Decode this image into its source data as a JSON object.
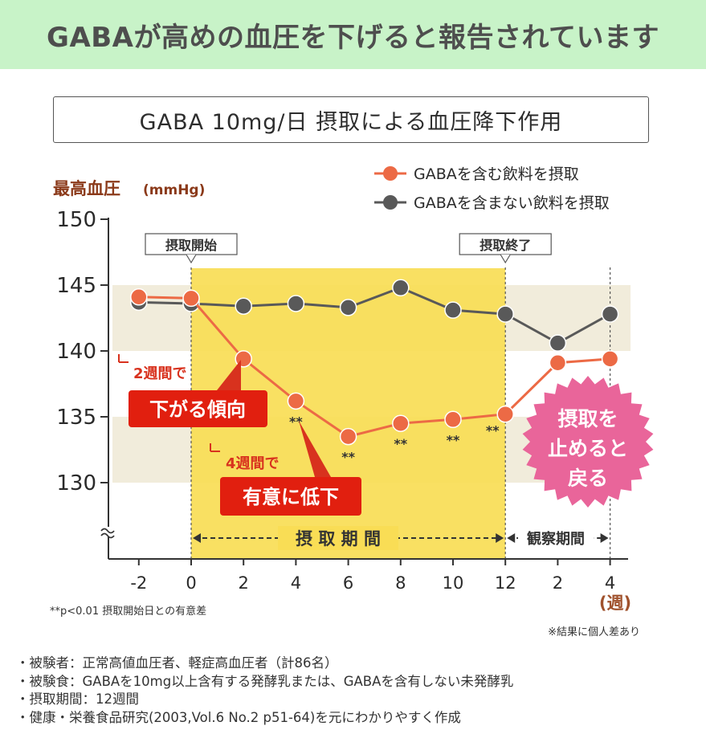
{
  "banner": {
    "headline": "GABAが高めの血圧を下げると報告されています"
  },
  "chart_data": {
    "type": "line",
    "title": "GABA 10mg/日 摂取による血圧降下作用",
    "ylabel": "最高血圧",
    "ylabel_unit": "(mmHg)",
    "xlabel": "(週)",
    "ylim": [
      128,
      150
    ],
    "yticks": [
      150,
      145,
      140,
      135,
      130
    ],
    "x_positions": [
      -2,
      0,
      2,
      4,
      6,
      8,
      10,
      12,
      14,
      16
    ],
    "x_tick_labels": [
      "-2",
      "0",
      "2",
      "4",
      "6",
      "8",
      "10",
      "12",
      "2",
      "4"
    ],
    "series": [
      {
        "name": "GABAを含む飲料を摂取",
        "color": "#ec6a45",
        "x": [
          -2,
          0,
          2,
          4,
          6,
          8,
          10,
          12,
          14,
          16
        ],
        "values": [
          144.1,
          144.0,
          139.4,
          136.2,
          133.5,
          134.5,
          134.8,
          135.2,
          139.1,
          139.4
        ],
        "significance": [
          "",
          "",
          "",
          "**",
          "**",
          "**",
          "**",
          "**",
          "",
          ""
        ]
      },
      {
        "name": "GABAを含まない飲料を摂取",
        "color": "#595959",
        "x": [
          -2,
          0,
          2,
          4,
          6,
          8,
          10,
          12,
          14,
          16
        ],
        "values": [
          143.7,
          143.6,
          143.4,
          143.6,
          143.3,
          144.8,
          143.1,
          142.8,
          140.6,
          142.8
        ]
      }
    ],
    "markers": {
      "start": "摂取開始",
      "end": "摂取終了"
    },
    "periods": {
      "intake": "摂取期間",
      "observation": "観察期間"
    },
    "annotations": {
      "two_weeks_small": "2週間で",
      "two_weeks_big": "下がる傾向",
      "four_weeks_small": "4週間で",
      "four_weeks_big": "有意に低下",
      "stop_effect": [
        "摂取を",
        "止めると",
        "戻る"
      ]
    },
    "significance_note": "**p<0.01 摂取開始日との有意差",
    "individual_note": "※結果に個人差あり",
    "grid": false,
    "legend": "top-right"
  },
  "footnotes": [
    "・被験者：正常高値血圧者、軽症高血圧者（計86名）",
    "・被験食：GABAを10mg以上含有する発酵乳または、GABAを含有しない未発酵乳",
    "・摂取期間：12週間",
    "・健康・栄養食品研究(2003,Vol.6 No.2 p51-64)を元にわかりやすく作成"
  ]
}
